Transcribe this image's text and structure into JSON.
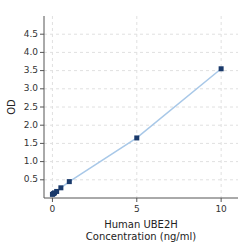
{
  "chart_data": {
    "type": "line",
    "x": [
      0,
      0.0625,
      0.125,
      0.25,
      0.5,
      1.0,
      5.0,
      10.0
    ],
    "values": [
      0.1,
      0.12,
      0.14,
      0.18,
      0.28,
      0.45,
      1.65,
      3.55
    ],
    "color": "#a8c8e8",
    "colors": [
      "#1a3a6b",
      "#1a3a6b",
      "#1a3a6b",
      "#1a3a6b",
      "#1a3a6b",
      "#1a3a6b",
      "#1a3a6b",
      "#1a3a6b"
    ],
    "marker": "square",
    "line_style": "solid",
    "x_label": "Human UBE2H\nConcentration (ng/ml)",
    "y_label": "OD",
    "xlim": [
      -0.5,
      11.0
    ],
    "ylim": [
      0,
      5.0
    ],
    "xticks": [
      0,
      5,
      10
    ],
    "yticks": [
      0.5,
      {
        "value": 1.0,
        "label": "1.0"
      },
      1.5,
      {
        "value": 2.0,
        "label": "2.0"
      },
      2.5,
      {
        "value": 3.0,
        "label": "3.0"
      },
      3.5,
      {
        "value": 4.0,
        "label": "4.0"
      },
      4.5
    ],
    "grid": true
  }
}
